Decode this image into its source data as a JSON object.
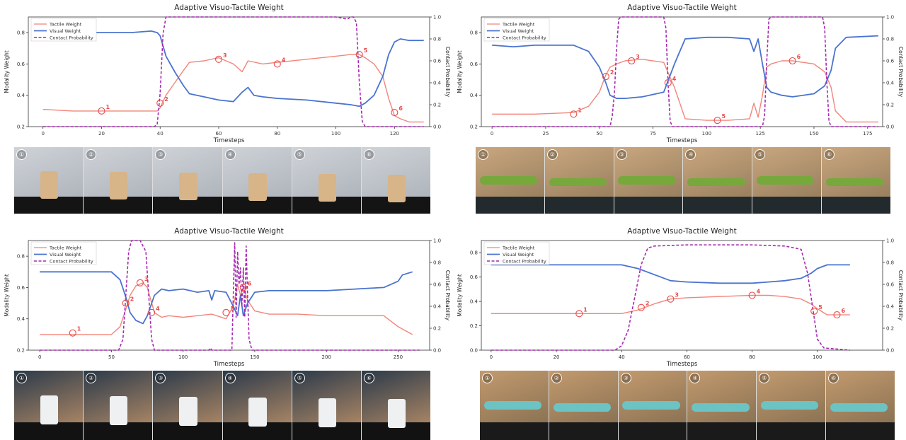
{
  "colors": {
    "tactile": "#f2857a",
    "visual": "#4a73cf",
    "contact": "#a52ab0",
    "marker": "#e84a4a"
  },
  "chart_data": [
    {
      "type": "line",
      "title": "Adaptive Visuo-Tactile Weight",
      "xlabel": "Timesteps",
      "ylabel": "Modality Weight",
      "ylabel_right": "Contact Probability",
      "xlim": [
        -5,
        132
      ],
      "ylim": [
        0.2,
        0.9
      ],
      "ylim_right": [
        0.0,
        1.0
      ],
      "xticks": [
        "0",
        "20",
        "40",
        "60",
        "80",
        "100",
        "120"
      ],
      "yticks": [
        "0.2",
        "0.4",
        "0.6",
        "0.8"
      ],
      "yticks_right": [
        "0.0",
        "0.2",
        "0.4",
        "0.6",
        "0.8",
        "1.0"
      ],
      "legend": [
        "Tactile Weight",
        "Visual Weight",
        "Contact Probability"
      ],
      "legend_position": "top-left",
      "series": [
        {
          "name": "Tactile Weight",
          "x": [
            0,
            10,
            20,
            30,
            39,
            40,
            42,
            45,
            48,
            50,
            55,
            60,
            65,
            68,
            70,
            75,
            80,
            90,
            100,
            105,
            108,
            110,
            113,
            116,
            118,
            120,
            122,
            125,
            130
          ],
          "y": [
            0.31,
            0.3,
            0.3,
            0.3,
            0.3,
            0.32,
            0.4,
            0.48,
            0.56,
            0.61,
            0.62,
            0.64,
            0.6,
            0.55,
            0.62,
            0.6,
            0.61,
            0.63,
            0.65,
            0.66,
            0.66,
            0.64,
            0.6,
            0.52,
            0.38,
            0.27,
            0.25,
            0.23,
            0.23
          ]
        },
        {
          "name": "Visual Weight",
          "x": [
            0,
            10,
            20,
            30,
            37,
            39,
            40,
            42,
            45,
            48,
            50,
            55,
            60,
            65,
            68,
            70,
            72,
            75,
            80,
            90,
            100,
            105,
            108,
            110,
            113,
            116,
            118,
            120,
            122,
            125,
            130
          ],
          "y": [
            0.79,
            0.8,
            0.8,
            0.8,
            0.81,
            0.8,
            0.78,
            0.65,
            0.55,
            0.46,
            0.41,
            0.39,
            0.37,
            0.36,
            0.42,
            0.45,
            0.4,
            0.39,
            0.38,
            0.37,
            0.35,
            0.34,
            0.33,
            0.35,
            0.4,
            0.52,
            0.66,
            0.74,
            0.76,
            0.75,
            0.75
          ]
        },
        {
          "name": "Contact Probability",
          "axis": "right",
          "x": [
            0,
            10,
            20,
            30,
            38,
            39,
            40,
            41,
            42,
            43,
            50,
            60,
            70,
            80,
            90,
            100,
            104,
            105,
            106,
            107,
            108,
            109,
            110,
            120,
            130
          ],
          "y": [
            0,
            0,
            0,
            0,
            0,
            0.02,
            0.3,
            0.85,
            1.0,
            1.0,
            1.0,
            1.0,
            1.0,
            1.0,
            1.0,
            1.0,
            0.98,
            1.0,
            1.0,
            0.95,
            0.4,
            0.05,
            0,
            0,
            0
          ]
        }
      ],
      "annotations": [
        {
          "label": "1",
          "x": 20,
          "y": 0.3
        },
        {
          "label": "2",
          "x": 40,
          "y": 0.35
        },
        {
          "label": "3",
          "x": 60,
          "y": 0.63
        },
        {
          "label": "4",
          "x": 80,
          "y": 0.6
        },
        {
          "label": "5",
          "x": 108,
          "y": 0.66
        },
        {
          "label": "6",
          "x": 120,
          "y": 0.29
        }
      ]
    },
    {
      "type": "line",
      "title": "Adaptive Visuo-Tactile Weight",
      "xlabel": "Timesteps",
      "ylabel": "Modality Weight",
      "ylabel_right": "Contact Probability",
      "xlim": [
        -5,
        182
      ],
      "ylim": [
        0.2,
        0.9
      ],
      "ylim_right": [
        0.0,
        1.0
      ],
      "xticks": [
        "0",
        "25",
        "50",
        "75",
        "100",
        "125",
        "150",
        "175"
      ],
      "yticks": [
        "0.2",
        "0.4",
        "0.6",
        "0.8"
      ],
      "yticks_right": [
        "0.0",
        "0.2",
        "0.4",
        "0.6",
        "0.8",
        "1.0"
      ],
      "legend": [
        "Tactile Weight",
        "Visual Weight",
        "Contact Probability"
      ],
      "legend_position": "top-left",
      "series": [
        {
          "name": "Tactile Weight",
          "x": [
            0,
            20,
            38,
            45,
            50,
            53,
            55,
            58,
            62,
            70,
            80,
            85,
            90,
            100,
            110,
            120,
            122,
            124,
            126,
            128,
            130,
            135,
            140,
            150,
            155,
            158,
            160,
            165,
            180
          ],
          "y": [
            0.28,
            0.28,
            0.29,
            0.33,
            0.42,
            0.53,
            0.58,
            0.6,
            0.62,
            0.63,
            0.61,
            0.45,
            0.25,
            0.24,
            0.24,
            0.25,
            0.35,
            0.26,
            0.4,
            0.58,
            0.6,
            0.62,
            0.62,
            0.6,
            0.55,
            0.45,
            0.3,
            0.23,
            0.23
          ]
        },
        {
          "name": "Visual Weight",
          "x": [
            0,
            10,
            20,
            38,
            45,
            50,
            53,
            55,
            58,
            62,
            70,
            80,
            85,
            90,
            100,
            110,
            120,
            122,
            124,
            126,
            128,
            130,
            135,
            140,
            150,
            155,
            158,
            160,
            165,
            180
          ],
          "y": [
            0.72,
            0.71,
            0.72,
            0.72,
            0.68,
            0.58,
            0.48,
            0.4,
            0.38,
            0.38,
            0.39,
            0.42,
            0.6,
            0.76,
            0.77,
            0.77,
            0.76,
            0.68,
            0.76,
            0.6,
            0.45,
            0.42,
            0.4,
            0.39,
            0.41,
            0.46,
            0.56,
            0.7,
            0.77,
            0.78
          ]
        },
        {
          "name": "Contact Probability",
          "axis": "right",
          "x": [
            0,
            50,
            55,
            56,
            57,
            58,
            59,
            60,
            80,
            81,
            82,
            83,
            84,
            100,
            126,
            127,
            128,
            129,
            130,
            154,
            155,
            156,
            157,
            158,
            180
          ],
          "y": [
            0,
            0,
            0,
            0.1,
            0.3,
            0.7,
            0.98,
            1.0,
            1.0,
            0.9,
            0.4,
            0.05,
            0,
            0,
            0,
            0.1,
            0.6,
            0.98,
            1.0,
            1.0,
            0.9,
            0.4,
            0.05,
            0,
            0
          ]
        }
      ],
      "annotations": [
        {
          "label": "1",
          "x": 38,
          "y": 0.28
        },
        {
          "label": "2",
          "x": 53,
          "y": 0.52
        },
        {
          "label": "3",
          "x": 65,
          "y": 0.62
        },
        {
          "label": "4",
          "x": 82,
          "y": 0.48
        },
        {
          "label": "5",
          "x": 105,
          "y": 0.24
        },
        {
          "label": "6",
          "x": 140,
          "y": 0.62
        }
      ]
    },
    {
      "type": "line",
      "title": "Adaptive Visuo-Tactile Weight",
      "xlabel": "Timesteps",
      "ylabel": "Modality Weight",
      "ylabel_right": "Contact Probability",
      "xlim": [
        -8,
        272
      ],
      "ylim": [
        0.2,
        0.9
      ],
      "ylim_right": [
        0.0,
        1.0
      ],
      "xticks": [
        "0",
        "50",
        "100",
        "150",
        "200",
        "250"
      ],
      "yticks": [
        "0.2",
        "0.4",
        "0.6",
        "0.8"
      ],
      "yticks_right": [
        "0.0",
        "0.2",
        "0.4",
        "0.6",
        "0.8",
        "1.0"
      ],
      "legend": [
        "Tactile Weight",
        "Visual Weight",
        "Contact Probability"
      ],
      "legend_position": "top-left",
      "series": [
        {
          "name": "Tactile Weight",
          "x": [
            0,
            25,
            50,
            56,
            60,
            63,
            67,
            72,
            75,
            80,
            85,
            90,
            100,
            110,
            120,
            130,
            135,
            138,
            140,
            142,
            145,
            150,
            160,
            180,
            200,
            220,
            240,
            250,
            260
          ],
          "y": [
            0.3,
            0.3,
            0.3,
            0.35,
            0.46,
            0.55,
            0.61,
            0.63,
            0.6,
            0.44,
            0.41,
            0.42,
            0.41,
            0.42,
            0.43,
            0.4,
            0.48,
            0.62,
            0.55,
            0.6,
            0.52,
            0.45,
            0.43,
            0.43,
            0.42,
            0.42,
            0.42,
            0.35,
            0.3
          ]
        },
        {
          "name": "Visual Weight",
          "x": [
            0,
            25,
            50,
            56,
            60,
            63,
            67,
            72,
            75,
            80,
            85,
            90,
            100,
            110,
            118,
            120,
            122,
            130,
            135,
            138,
            140,
            142,
            145,
            150,
            160,
            180,
            200,
            220,
            240,
            250,
            253,
            260
          ],
          "y": [
            0.7,
            0.7,
            0.7,
            0.65,
            0.54,
            0.44,
            0.39,
            0.37,
            0.42,
            0.55,
            0.59,
            0.58,
            0.59,
            0.57,
            0.58,
            0.52,
            0.58,
            0.57,
            0.48,
            0.42,
            0.55,
            0.42,
            0.5,
            0.57,
            0.58,
            0.58,
            0.58,
            0.59,
            0.6,
            0.64,
            0.68,
            0.7
          ]
        },
        {
          "name": "Contact Probability",
          "axis": "right",
          "x": [
            0,
            55,
            58,
            60,
            62,
            64,
            66,
            68,
            70,
            72,
            74,
            76,
            78,
            80,
            100,
            118,
            119,
            120,
            134,
            135,
            136,
            137,
            138,
            139,
            140,
            141,
            142,
            143,
            144,
            145,
            146,
            148,
            160,
            265
          ],
          "y": [
            0,
            0,
            0.1,
            0.5,
            0.9,
            1.0,
            1.0,
            1.0,
            1.0,
            0.95,
            0.9,
            0.5,
            0.1,
            0,
            0,
            0,
            0.02,
            0,
            0,
            0.5,
            0.98,
            0.3,
            0.9,
            0.6,
            0.75,
            0.4,
            0.75,
            0.3,
            0.95,
            0.5,
            0.1,
            0,
            0,
            0
          ]
        }
      ],
      "annotations": [
        {
          "label": "1",
          "x": 23,
          "y": 0.31
        },
        {
          "label": "2",
          "x": 60,
          "y": 0.5
        },
        {
          "label": "3",
          "x": 70,
          "y": 0.63
        },
        {
          "label": "4",
          "x": 78,
          "y": 0.44
        },
        {
          "label": "5",
          "x": 130,
          "y": 0.44
        },
        {
          "label": "6",
          "x": 142,
          "y": 0.6
        }
      ]
    },
    {
      "type": "line",
      "title": "Adaptive Visuo-Tactile Weight",
      "xlabel": "Timesteps",
      "ylabel": "Modality Weight",
      "ylabel_right": "Contact Probability",
      "xlim": [
        -3,
        120
      ],
      "ylim": [
        0.0,
        0.9
      ],
      "ylim_right": [
        0.0,
        1.0
      ],
      "xticks": [
        "0",
        "20",
        "40",
        "60",
        "80",
        "100"
      ],
      "yticks": [
        "0.0",
        "0.2",
        "0.4",
        "0.6",
        "0.8"
      ],
      "yticks_right": [
        "0.0",
        "0.2",
        "0.4",
        "0.6",
        "0.8",
        "1.0"
      ],
      "legend": [
        "Tactile Weight",
        "Visual Weight",
        "Contact Probability"
      ],
      "legend_position": "top-left",
      "series": [
        {
          "name": "Tactile Weight",
          "x": [
            0,
            10,
            20,
            30,
            40,
            45,
            50,
            55,
            60,
            70,
            80,
            85,
            90,
            95,
            98,
            100,
            103,
            106,
            110
          ],
          "y": [
            0.3,
            0.3,
            0.3,
            0.3,
            0.3,
            0.33,
            0.38,
            0.42,
            0.43,
            0.44,
            0.45,
            0.45,
            0.44,
            0.42,
            0.38,
            0.34,
            0.29,
            0.29,
            0.29
          ]
        },
        {
          "name": "Visual Weight",
          "x": [
            0,
            10,
            20,
            30,
            40,
            45,
            50,
            55,
            60,
            70,
            80,
            85,
            90,
            95,
            98,
            100,
            103,
            106,
            110
          ],
          "y": [
            0.7,
            0.7,
            0.7,
            0.7,
            0.7,
            0.67,
            0.62,
            0.57,
            0.56,
            0.55,
            0.55,
            0.56,
            0.57,
            0.59,
            0.63,
            0.67,
            0.7,
            0.7,
            0.7
          ]
        },
        {
          "name": "Contact Probability",
          "axis": "right",
          "x": [
            0,
            20,
            38,
            40,
            42,
            44,
            46,
            48,
            50,
            60,
            70,
            80,
            90,
            95,
            97,
            99,
            100,
            102,
            110
          ],
          "y": [
            0,
            0,
            0,
            0.04,
            0.18,
            0.48,
            0.78,
            0.93,
            0.95,
            0.96,
            0.96,
            0.96,
            0.95,
            0.92,
            0.7,
            0.3,
            0.1,
            0.02,
            0
          ]
        }
      ],
      "annotations": [
        {
          "label": "1",
          "x": 27,
          "y": 0.3
        },
        {
          "label": "2",
          "x": 46,
          "y": 0.35
        },
        {
          "label": "3",
          "x": 55,
          "y": 0.42
        },
        {
          "label": "4",
          "x": 80,
          "y": 0.45
        },
        {
          "label": "5",
          "x": 99,
          "y": 0.32
        },
        {
          "label": "6",
          "x": 106,
          "y": 0.29
        }
      ]
    }
  ],
  "strips": [
    {
      "frames": [
        {
          "label": "①"
        },
        {
          "label": "②"
        },
        {
          "label": "③"
        },
        {
          "label": "④"
        },
        {
          "label": "⑤"
        },
        {
          "label": "⑥"
        }
      ]
    },
    {
      "frames": [
        {
          "label": "①"
        },
        {
          "label": "②"
        },
        {
          "label": "③"
        },
        {
          "label": "④"
        },
        {
          "label": "⑤"
        },
        {
          "label": "⑥"
        }
      ]
    },
    {
      "frames": [
        {
          "label": "①"
        },
        {
          "label": "②"
        },
        {
          "label": "③"
        },
        {
          "label": "④"
        },
        {
          "label": "⑤"
        },
        {
          "label": "⑥"
        }
      ]
    },
    {
      "frames": [
        {
          "label": "①"
        },
        {
          "label": "②"
        },
        {
          "label": "③"
        },
        {
          "label": "④"
        },
        {
          "label": "⑤"
        },
        {
          "label": "⑥"
        }
      ]
    }
  ]
}
